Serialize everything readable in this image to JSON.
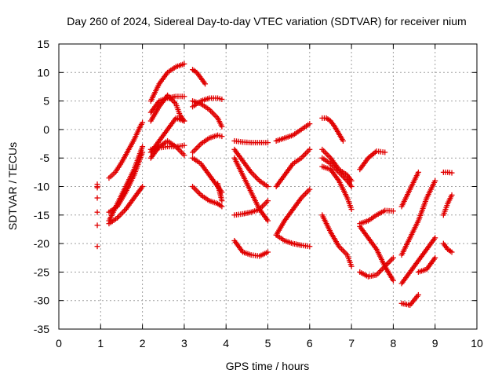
{
  "chart_data": {
    "type": "scatter",
    "title": "Day 260 of 2024, Sidereal Day-to-day VTEC variation (SDTVAR) for receiver nium",
    "xlabel": "GPS time / hours",
    "ylabel": "SDTVAR / TECUs",
    "xlim": [
      0,
      10
    ],
    "ylim": [
      -35,
      15
    ],
    "xticks": [
      0,
      1,
      2,
      3,
      4,
      5,
      6,
      7,
      8,
      9,
      10
    ],
    "yticks": [
      -35,
      -30,
      -25,
      -20,
      -15,
      -10,
      -5,
      0,
      5,
      10,
      15
    ],
    "grid": true,
    "marker": "+",
    "marker_color": "#e00000",
    "series": [
      {
        "x": [
          0.92,
          0.92,
          0.92,
          0.92,
          0.92,
          0.92,
          0.92
        ],
        "y": [
          -9.6,
          -10.2,
          -12,
          -14.5,
          -16.8,
          -20.5,
          -10
        ]
      },
      {
        "x": [
          1.2,
          1.35,
          1.5,
          1.65,
          1.8,
          1.95,
          2.0
        ],
        "y": [
          -8.5,
          -7.5,
          -5.8,
          -3.8,
          -1.8,
          0.6,
          1.2
        ]
      },
      {
        "x": [
          1.2,
          1.4,
          1.6,
          1.8,
          2.0
        ],
        "y": [
          -14.5,
          -13.5,
          -11,
          -8,
          -4
        ]
      },
      {
        "x": [
          1.2,
          1.4,
          1.6,
          1.8,
          2.0
        ],
        "y": [
          -16.5,
          -15.5,
          -14,
          -12,
          -10
        ]
      },
      {
        "x": [
          1.2,
          1.4,
          1.6,
          1.8,
          2.0
        ],
        "y": [
          -16,
          -13,
          -10,
          -7,
          -3
        ]
      },
      {
        "x": [
          2.2,
          2.4,
          2.6,
          2.8,
          3.0
        ],
        "y": [
          5,
          8,
          10,
          11,
          11.5
        ]
      },
      {
        "x": [
          2.2,
          2.4,
          2.6,
          2.8,
          3.0
        ],
        "y": [
          3,
          5,
          5.5,
          5.8,
          5.8
        ]
      },
      {
        "x": [
          2.2,
          2.4,
          2.6,
          2.8,
          2.9,
          3.0
        ],
        "y": [
          1.5,
          4,
          6,
          4.5,
          2.5,
          1.5
        ]
      },
      {
        "x": [
          2.2,
          2.4,
          2.6,
          2.8,
          3.0
        ],
        "y": [
          -4,
          -2,
          0,
          2,
          1.5
        ]
      },
      {
        "x": [
          2.2,
          2.4,
          2.6,
          2.8,
          3.0
        ],
        "y": [
          -3.5,
          -3.2,
          -3,
          -3,
          -2.8
        ]
      },
      {
        "x": [
          2.2,
          2.4,
          2.6,
          2.8,
          3.0
        ],
        "y": [
          -5,
          -3,
          -2,
          -3,
          -4.5
        ]
      },
      {
        "x": [
          3.2,
          3.3,
          3.4,
          3.5
        ],
        "y": [
          10.5,
          10,
          9,
          8
        ]
      },
      {
        "x": [
          3.2,
          3.4,
          3.6,
          3.8,
          3.9
        ],
        "y": [
          4,
          5,
          5.5,
          5.5,
          5.3
        ]
      },
      {
        "x": [
          3.2,
          3.4,
          3.6,
          3.8,
          3.9
        ],
        "y": [
          5,
          4.5,
          3.5,
          2,
          0.5
        ]
      },
      {
        "x": [
          3.2,
          3.4,
          3.6,
          3.8,
          3.9
        ],
        "y": [
          -4,
          -2.5,
          -1.5,
          -1,
          -1.2
        ]
      },
      {
        "x": [
          3.2,
          3.4,
          3.6,
          3.8,
          3.9
        ],
        "y": [
          -5,
          -6,
          -8,
          -10,
          -11
        ]
      },
      {
        "x": [
          3.2,
          3.4,
          3.6,
          3.8,
          3.9
        ],
        "y": [
          -10,
          -11.5,
          -12.5,
          -13,
          -13.5
        ]
      },
      {
        "x": [
          3.8,
          3.85,
          3.9
        ],
        "y": [
          -9.5,
          -11,
          -12.5
        ]
      },
      {
        "x": [
          4.2,
          4.4,
          4.6,
          4.8,
          5.0
        ],
        "y": [
          -2,
          -2.2,
          -2.3,
          -2.3,
          -2.3
        ]
      },
      {
        "x": [
          4.2,
          4.4,
          4.6,
          4.8,
          5.0
        ],
        "y": [
          -3.5,
          -5.5,
          -7.5,
          -9,
          -10
        ]
      },
      {
        "x": [
          4.2,
          4.4,
          4.6,
          4.8,
          5.0
        ],
        "y": [
          -5,
          -8,
          -11,
          -14,
          -16
        ]
      },
      {
        "x": [
          4.2,
          4.4,
          4.6,
          4.8,
          5.0
        ],
        "y": [
          -15,
          -14.8,
          -14.5,
          -14,
          -12.5
        ]
      },
      {
        "x": [
          4.2,
          4.4,
          4.6,
          4.8,
          5.0
        ],
        "y": [
          -19.5,
          -21.5,
          -22,
          -22.2,
          -21.5
        ]
      },
      {
        "x": [
          5.2,
          5.4,
          5.6,
          5.8,
          6.0
        ],
        "y": [
          -2,
          -1.5,
          -1,
          0,
          1
        ]
      },
      {
        "x": [
          5.2,
          5.4,
          5.6,
          5.8,
          6.0
        ],
        "y": [
          -10,
          -8,
          -6,
          -5,
          -3.5
        ]
      },
      {
        "x": [
          5.2,
          5.4,
          5.6,
          5.8,
          6.0
        ],
        "y": [
          -18.5,
          -16,
          -14,
          -12,
          -10.5
        ]
      },
      {
        "x": [
          5.2,
          5.4,
          5.6,
          5.8,
          6.0
        ],
        "y": [
          -18.5,
          -19.5,
          -20,
          -20.3,
          -20.5
        ]
      },
      {
        "x": [
          6.3,
          6.4,
          6.5,
          6.6,
          6.8
        ],
        "y": [
          2,
          2,
          1.5,
          0.5,
          -2
        ]
      },
      {
        "x": [
          6.3,
          6.5,
          6.7,
          6.9,
          7.0
        ],
        "y": [
          -3.5,
          -5,
          -7,
          -8,
          -9
        ]
      },
      {
        "x": [
          6.3,
          6.5,
          6.7,
          6.9,
          7.0
        ],
        "y": [
          -6.5,
          -7,
          -9,
          -12,
          -14
        ]
      },
      {
        "x": [
          6.3,
          6.5,
          6.7,
          6.9,
          7.0
        ],
        "y": [
          -15,
          -18,
          -20.5,
          -22,
          -24
        ]
      },
      {
        "x": [
          6.3,
          6.5,
          6.7,
          6.9,
          7.0
        ],
        "y": [
          -5,
          -6,
          -7.5,
          -9,
          -10
        ]
      },
      {
        "x": [
          7.2,
          7.4,
          7.6,
          7.8
        ],
        "y": [
          -7,
          -5,
          -3.8,
          -4
        ]
      },
      {
        "x": [
          7.2,
          7.4,
          7.6,
          7.8,
          8.0
        ],
        "y": [
          -16.5,
          -16,
          -15,
          -14.2,
          -14.3
        ]
      },
      {
        "x": [
          7.2,
          7.4,
          7.6,
          7.8,
          8.0
        ],
        "y": [
          -17,
          -19,
          -21,
          -24,
          -26.5
        ]
      },
      {
        "x": [
          7.2,
          7.4,
          7.6,
          7.8,
          8.0
        ],
        "y": [
          -25,
          -25.8,
          -25.5,
          -24,
          -22.5
        ]
      },
      {
        "x": [
          8.2,
          8.3,
          8.4,
          8.5,
          8.6
        ],
        "y": [
          -13.5,
          -12,
          -10.5,
          -9,
          -7.5
        ]
      },
      {
        "x": [
          8.2,
          8.4,
          8.6,
          8.8,
          9.0
        ],
        "y": [
          -22,
          -19,
          -16,
          -12,
          -9
        ]
      },
      {
        "x": [
          8.2,
          8.4,
          8.6
        ],
        "y": [
          -30.5,
          -30.8,
          -29
        ]
      },
      {
        "x": [
          8.6,
          8.8,
          9.0
        ],
        "y": [
          -25,
          -24.5,
          -22.5
        ]
      },
      {
        "x": [
          8.2,
          8.4,
          8.6,
          8.8,
          9.0
        ],
        "y": [
          -27,
          -25,
          -23,
          -21,
          -19
        ]
      },
      {
        "x": [
          9.2,
          9.3,
          9.4
        ],
        "y": [
          -7.5,
          -7.5,
          -7.6
        ]
      },
      {
        "x": [
          9.2,
          9.3,
          9.4
        ],
        "y": [
          -15,
          -13,
          -11.5
        ]
      },
      {
        "x": [
          9.2,
          9.3,
          9.4
        ],
        "y": [
          -20,
          -21,
          -21.5
        ]
      }
    ]
  }
}
